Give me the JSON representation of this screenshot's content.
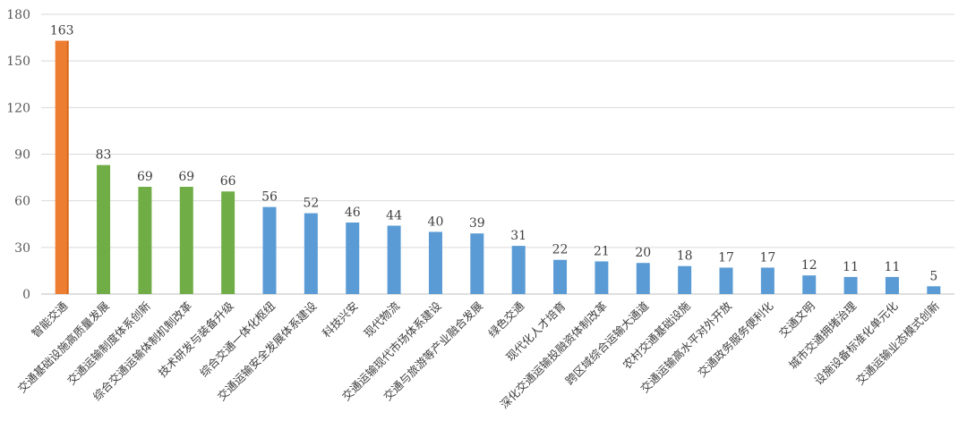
{
  "chart_data": {
    "type": "bar",
    "title": "",
    "xlabel": "",
    "ylabel": "",
    "ylim": [
      0,
      180
    ],
    "yticks": [
      0,
      30,
      60,
      90,
      120,
      150,
      180
    ],
    "grid": true,
    "legend": "none",
    "categories": [
      "智能交通",
      "交通基础设施高质量发展",
      "交通运输制度体系创新",
      "综合交通运输体制机制改革",
      "技术研发与装备升级",
      "综合交通一体化枢纽",
      "交通运输安全发展体系建设",
      "科技兴安",
      "现代物流",
      "交通运输现代市场体系建设",
      "交通与旅游等产业融合发展",
      "绿色交通",
      "现代化人才培育",
      "深化交通运输投融资体制改革",
      "跨区域综合运输大通道",
      "农村交通基础设施",
      "交通运输高水平对外开放",
      "交通政务服务便利化",
      "交通文明",
      "城市交通拥堵治理",
      "设施设备标准化单元化",
      "交通运输业态模式创新"
    ],
    "values": [
      163,
      83,
      69,
      69,
      66,
      56,
      52,
      46,
      44,
      40,
      39,
      31,
      22,
      21,
      20,
      18,
      17,
      17,
      12,
      11,
      11,
      5
    ],
    "bar_colors": [
      "#ed7d31",
      "#70ad47",
      "#70ad47",
      "#70ad47",
      "#70ad47",
      "#5b9bd5",
      "#5b9bd5",
      "#5b9bd5",
      "#5b9bd5",
      "#5b9bd5",
      "#5b9bd5",
      "#5b9bd5",
      "#5b9bd5",
      "#5b9bd5",
      "#5b9bd5",
      "#5b9bd5",
      "#5b9bd5",
      "#5b9bd5",
      "#5b9bd5",
      "#5b9bd5",
      "#5b9bd5",
      "#5b9bd5"
    ]
  }
}
